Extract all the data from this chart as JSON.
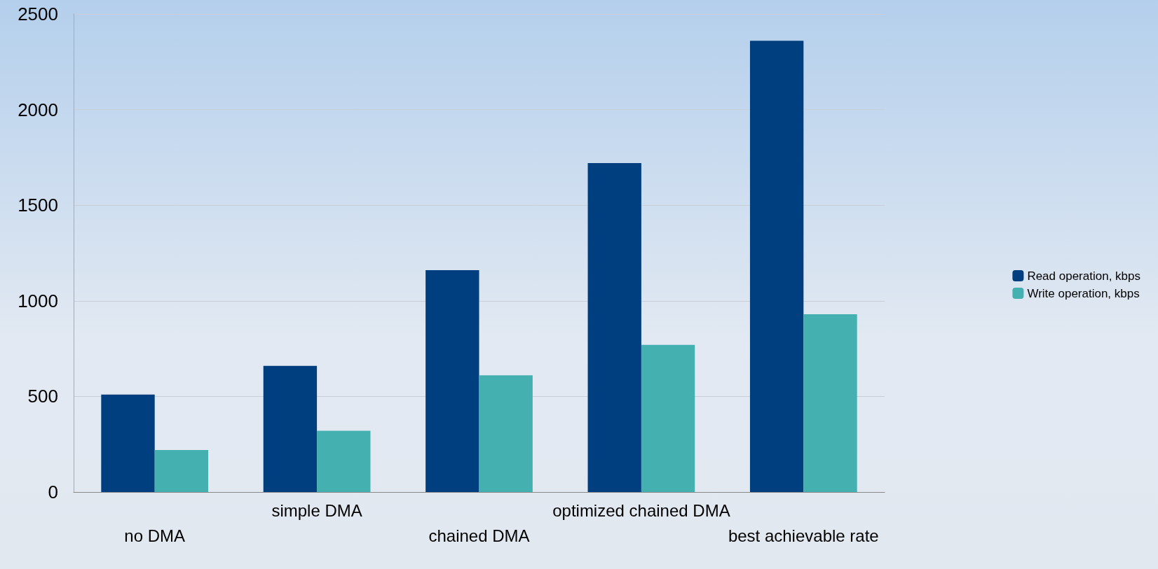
{
  "chart_data": {
    "type": "bar",
    "categories": [
      "no DMA",
      "simple DMA",
      "chained DMA",
      "optimized chained DMA",
      "best achievable rate"
    ],
    "series": [
      {
        "name": "Read operation, kbps",
        "color": "#003f7f",
        "values": [
          510,
          660,
          1160,
          1720,
          2360
        ]
      },
      {
        "name": "Write operation, kbps",
        "color": "#44b0b0",
        "values": [
          220,
          320,
          610,
          770,
          930
        ]
      }
    ],
    "ylim": [
      0,
      2500
    ],
    "yticks": [
      0,
      500,
      1000,
      1500,
      2000,
      2500
    ],
    "grid": "y",
    "legend": "right"
  }
}
